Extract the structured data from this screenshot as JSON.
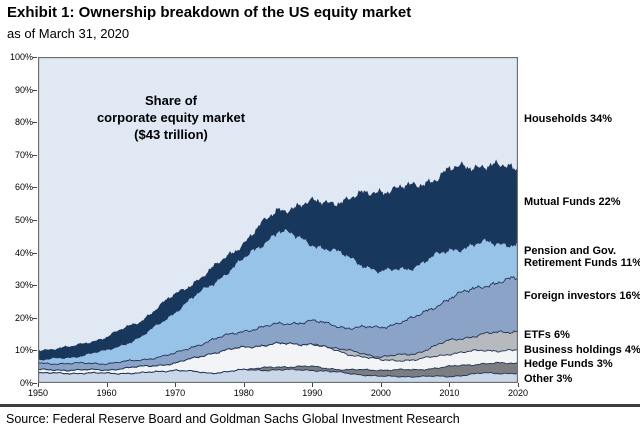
{
  "header": {
    "title": "Exhibit 1: Ownership breakdown of the US equity market",
    "subtitle": "as of March 31, 2020"
  },
  "annotation": {
    "lines": [
      "Share of",
      "corporate equity market",
      "($43 trillion)"
    ]
  },
  "source": {
    "text": "Source: Federal Reserve Board and Goldman Sachs Global Investment Research"
  },
  "chart_data": {
    "type": "area",
    "stacked": true,
    "title": "Share of corporate equity market ($43 trillion)",
    "xlabel": "",
    "ylabel": "",
    "unit": "%",
    "ylim": [
      0,
      100
    ],
    "x_range": [
      1950,
      2020
    ],
    "grid": false,
    "legend_position": "right",
    "y_ticks": [
      "0%",
      "10%",
      "20%",
      "30%",
      "40%",
      "50%",
      "60%",
      "70%",
      "80%",
      "90%",
      "100%"
    ],
    "x_ticks": [
      "1950",
      "1960",
      "1970",
      "1980",
      "1990",
      "2000",
      "2010",
      "2020"
    ],
    "x": [
      1950,
      1955,
      1960,
      1965,
      1970,
      1975,
      1980,
      1985,
      1990,
      1995,
      2000,
      2005,
      2010,
      2015,
      2020
    ],
    "series": [
      {
        "name": "other",
        "label_lines": [
          "Other 3%"
        ],
        "current_pct": 3,
        "color": "#c9d7e8",
        "values": [
          3,
          3,
          3,
          3,
          4,
          3,
          4,
          4,
          4,
          3,
          2,
          2,
          2,
          3,
          3
        ],
        "label_anchor_pct": 1.2
      },
      {
        "name": "hedge-funds",
        "label_lines": [
          "Hedge Funds 3%"
        ],
        "current_pct": 3,
        "color": "#7b7d80",
        "values": [
          0,
          0,
          0,
          0,
          0,
          0,
          0,
          1,
          1,
          1,
          2,
          2,
          3,
          3,
          3
        ],
        "label_anchor_pct": 5.6
      },
      {
        "name": "business-holdings",
        "label_lines": [
          "Business holdings 4%"
        ],
        "current_pct": 4,
        "color": "#f3f4f6",
        "values": [
          1,
          1,
          1,
          2,
          2,
          6,
          7,
          7,
          7,
          5,
          3,
          3,
          4,
          4,
          4
        ],
        "label_anchor_pct": 9.9
      },
      {
        "name": "etfs",
        "label_lines": [
          "ETFs 6%"
        ],
        "current_pct": 6,
        "color": "#b6b9bd",
        "values": [
          0,
          0,
          0,
          0,
          0,
          0,
          0,
          0,
          0,
          1,
          1,
          2,
          4,
          5,
          6
        ],
        "label_anchor_pct": 14.5
      },
      {
        "name": "foreign-investors",
        "label_lines": [
          "Foreign investors 16%"
        ],
        "current_pct": 16,
        "color": "#8ba3c7",
        "values": [
          2,
          2,
          2,
          2,
          3,
          4,
          5,
          6,
          7,
          7,
          9,
          11,
          13,
          15,
          16
        ],
        "label_anchor_pct": 26.5
      },
      {
        "name": "pension-gov-retirement-funds",
        "label_lines": [
          "Pension and Gov.",
          "Retirement Funds 11%"
        ],
        "current_pct": 11,
        "color": "#97c3e8",
        "values": [
          1,
          2,
          4,
          7,
          13,
          17,
          22,
          29,
          24,
          22,
          17,
          16,
          15,
          13,
          11
        ],
        "label_anchor_pct": 38.5
      },
      {
        "name": "mutual-funds",
        "label_lines": [
          "Mutual Funds 22%"
        ],
        "current_pct": 22,
        "color": "#17375d",
        "values": [
          3,
          3,
          4,
          5,
          5,
          4,
          5,
          6,
          12,
          17,
          25,
          24,
          24,
          24,
          22
        ],
        "label_anchor_pct": 55.5
      },
      {
        "name": "households",
        "role": "background",
        "label_lines": [
          "Households 34%"
        ],
        "current_pct": 34,
        "color": "#dfe8f3",
        "values": [
          90,
          89,
          86,
          81,
          73,
          66,
          57,
          47,
          45,
          44,
          41,
          40,
          35,
          33,
          34
        ],
        "label_anchor_pct": 81
      }
    ],
    "boundary_stroke_color": "#23375a",
    "frame_color": "#6e6e6e"
  }
}
